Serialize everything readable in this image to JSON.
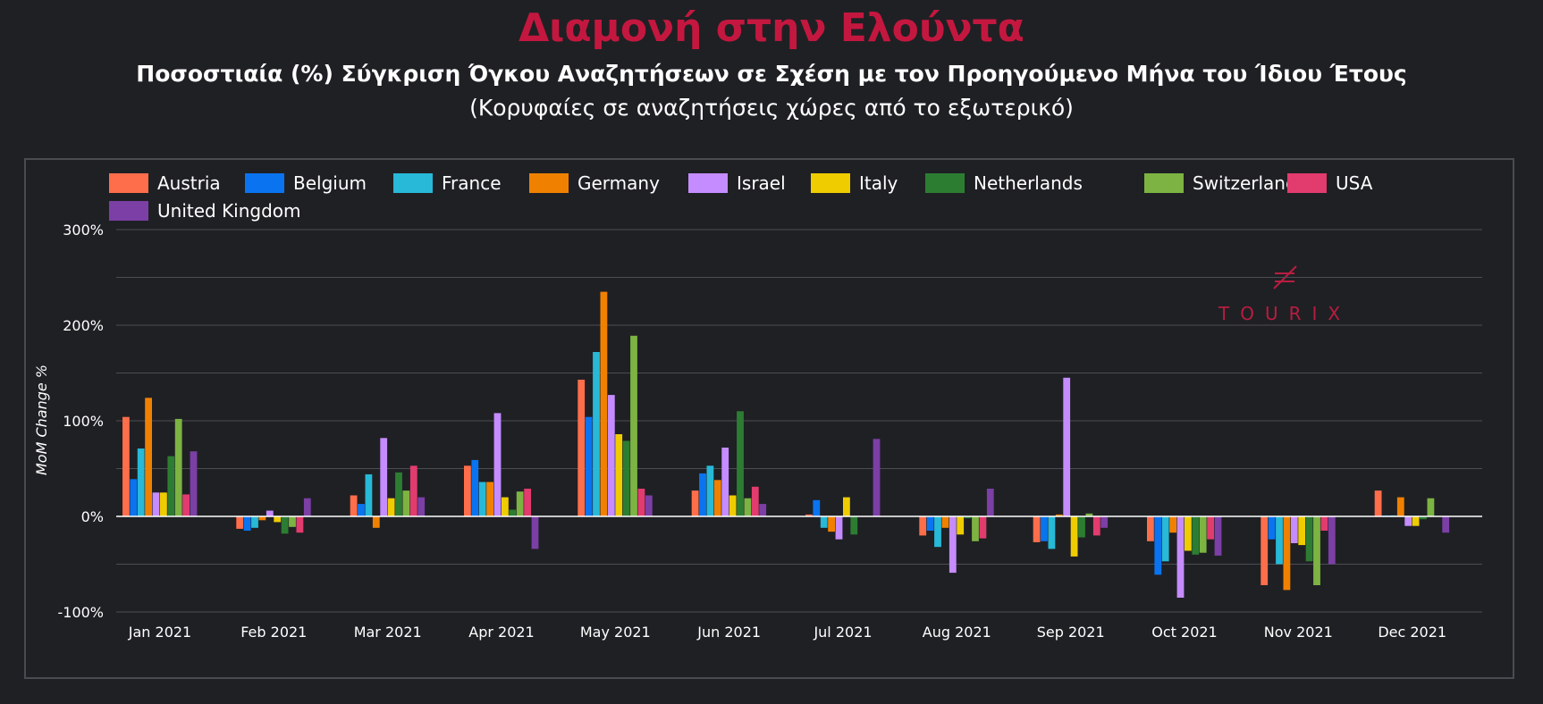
{
  "header": {
    "title": "Διαμονή στην Ελούντα",
    "subtitle": "Ποσοστιαία (%) Σύγκριση Όγκου Αναζητήσεων σε Σχέση με τον Προηγούμενο Μήνα του Ίδιου Έτους",
    "subtitle2": "(Κορυφαίες σε αναζητήσεις χώρες από το εξωτερικό)"
  },
  "watermark": {
    "text": "TOURIX"
  },
  "chart_data": {
    "type": "bar",
    "ylabel": "MoM Change %",
    "ylim": [
      -100,
      300
    ],
    "yticks": [
      "-100%",
      "0%",
      "100%",
      "200%",
      "300%"
    ],
    "grid": true,
    "legend_position": "top",
    "categories": [
      "Jan 2021",
      "Feb 2021",
      "Mar 2021",
      "Apr 2021",
      "May 2021",
      "Jun 2021",
      "Jul 2021",
      "Aug 2021",
      "Sep 2021",
      "Oct 2021",
      "Nov 2021",
      "Dec 2021"
    ],
    "series": [
      {
        "name": "Austria",
        "color": "#ff6e4a",
        "values": [
          104,
          -13,
          22,
          53,
          143,
          27,
          2,
          -20,
          -27,
          -26,
          -72,
          27
        ]
      },
      {
        "name": "Belgium",
        "color": "#0a74f0",
        "values": [
          39,
          -15,
          13,
          59,
          104,
          45,
          17,
          -15,
          -26,
          -61,
          -24,
          1
        ]
      },
      {
        "name": "France",
        "color": "#27b9d7",
        "values": [
          71,
          -12,
          44,
          36,
          172,
          53,
          -12,
          -32,
          -34,
          -47,
          -50,
          1
        ]
      },
      {
        "name": "Germany",
        "color": "#f08100",
        "values": [
          124,
          -4,
          -12,
          36,
          235,
          38,
          -16,
          -12,
          2,
          -17,
          -77,
          20
        ]
      },
      {
        "name": "Israel",
        "color": "#c58cff",
        "values": [
          25,
          6,
          82,
          108,
          127,
          72,
          -24,
          -59,
          145,
          -85,
          -28,
          -10
        ]
      },
      {
        "name": "Italy",
        "color": "#efcc00",
        "values": [
          25,
          -6,
          19,
          20,
          86,
          22,
          20,
          -19,
          -42,
          -36,
          -30,
          -10
        ]
      },
      {
        "name": "Netherlands",
        "color": "#2c7d32",
        "values": [
          63,
          -18,
          46,
          7,
          79,
          110,
          -19,
          -2,
          -22,
          -40,
          -47,
          -3
        ]
      },
      {
        "name": "Switzerland",
        "color": "#7cb342",
        "values": [
          102,
          -11,
          27,
          26,
          189,
          19,
          0,
          -26,
          3,
          -38,
          -72,
          19
        ]
      },
      {
        "name": "USA",
        "color": "#e23b6e",
        "values": [
          23,
          -17,
          53,
          29,
          29,
          31,
          0,
          -23,
          -20,
          -24,
          -15,
          0
        ]
      },
      {
        "name": "United Kingdom",
        "color": "#7b3fa6",
        "values": [
          68,
          19,
          20,
          -34,
          22,
          13,
          81,
          29,
          -12,
          -41,
          -50,
          -17
        ]
      }
    ]
  }
}
